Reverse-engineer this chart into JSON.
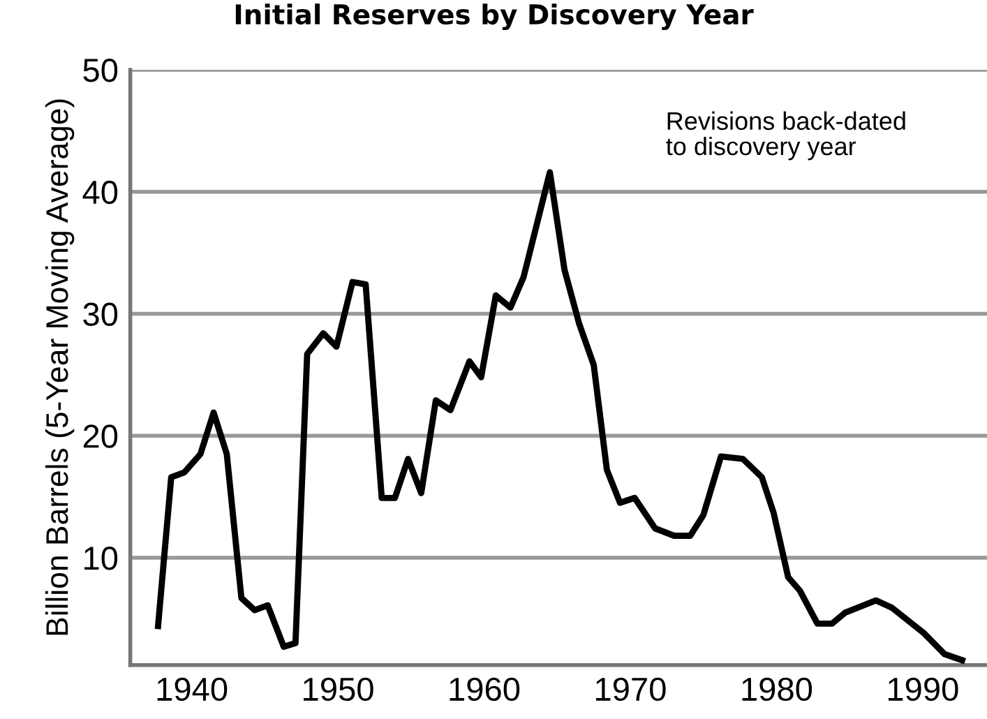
{
  "chart_data": {
    "type": "line",
    "title": "Initial Reserves by Discovery Year",
    "ylabel": "Billion Barrels (5-Year Moving Average)",
    "annotations": [
      "Revisions back-dated\nto discovery year"
    ],
    "series": [
      {
        "color": "#000000",
        "x": [
          1937.7,
          1938.6,
          1939.5,
          1940.6,
          1941.5,
          1942.4,
          1943.4,
          1944.3,
          1945.2,
          1946.3,
          1947.1,
          1947.9,
          1949.0,
          1949.9,
          1951.0,
          1951.9,
          1953.0,
          1953.9,
          1954.8,
          1955.7,
          1956.7,
          1957.7,
          1959.0,
          1959.8,
          1960.8,
          1961.8,
          1962.7,
          1964.5,
          1965.5,
          1966.5,
          1967.5,
          1968.4,
          1969.3,
          1970.3,
          1971.7,
          1973.0,
          1974.1,
          1975.0,
          1976.2,
          1977.7,
          1979.0,
          1979.8,
          1980.8,
          1981.6,
          1982.8,
          1983.8,
          1984.7,
          1986.8,
          1987.9,
          1990.1,
          1991.5,
          1992.7
        ],
        "values": [
          4.4,
          16.6,
          17.0,
          18.5,
          21.9,
          18.5,
          6.7,
          5.7,
          6.1,
          2.7,
          3.0,
          26.7,
          28.4,
          27.3,
          32.6,
          32.4,
          14.9,
          14.9,
          18.1,
          15.3,
          22.9,
          22.1,
          26.1,
          24.8,
          31.5,
          30.5,
          33.0,
          41.6,
          33.6,
          29.2,
          25.8,
          17.2,
          14.5,
          14.9,
          12.4,
          11.8,
          11.8,
          13.5,
          18.3,
          18.1,
          16.6,
          13.7,
          8.4,
          7.3,
          4.6,
          4.6,
          5.5,
          6.5,
          5.9,
          3.8,
          2.1,
          1.6
        ]
      }
    ],
    "xlim": [
      1935.8,
      1994.4
    ],
    "xticks": [
      1940,
      1950,
      1960,
      1970,
      1980,
      1990
    ],
    "ylim": [
      1.2,
      50
    ],
    "yticks": [
      10,
      20,
      30,
      40,
      50
    ],
    "grid": "y",
    "legend": false,
    "marker": "none",
    "line_style": "solid"
  }
}
